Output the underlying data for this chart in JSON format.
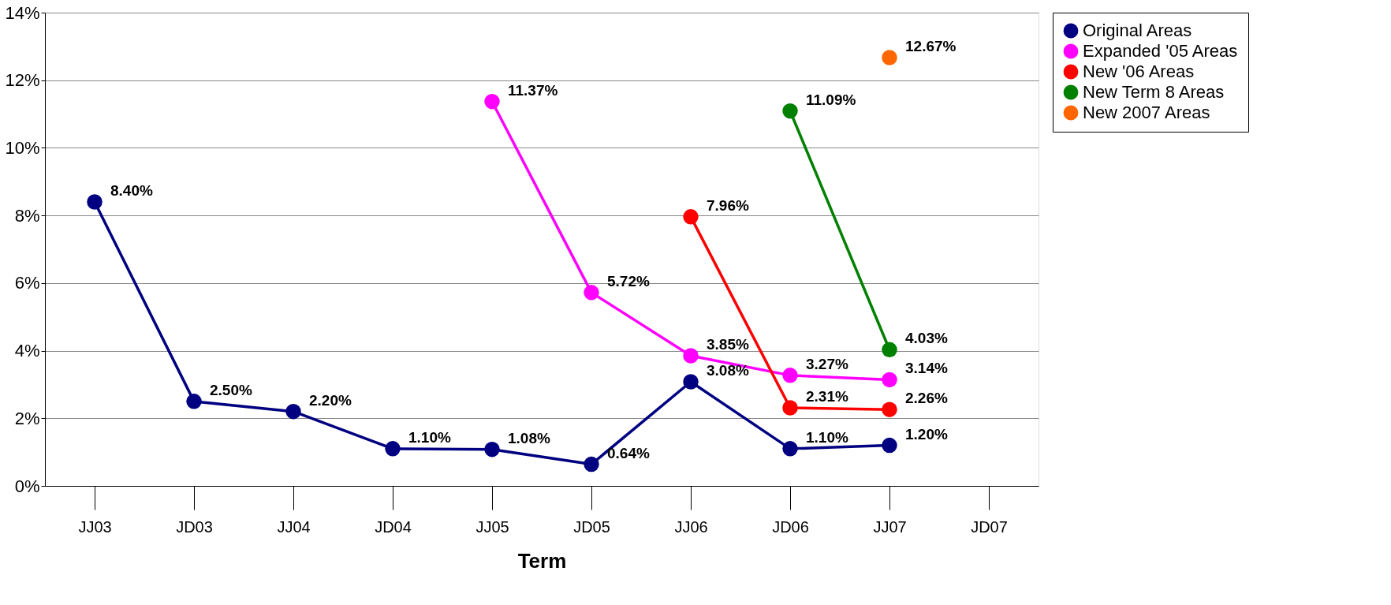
{
  "chart_data": {
    "type": "line",
    "xlabel": "Term",
    "categories": [
      "JJ03",
      "JD03",
      "JJ04",
      "JD04",
      "JJ05",
      "JD05",
      "JJ06",
      "JD06",
      "JJ07",
      "JD07"
    ],
    "ylim": [
      0,
      14
    ],
    "yticks": [
      {
        "value": 0,
        "label": "0%"
      },
      {
        "value": 2,
        "label": "2%"
      },
      {
        "value": 4,
        "label": "4%"
      },
      {
        "value": 6,
        "label": "6%"
      },
      {
        "value": 8,
        "label": "8%"
      },
      {
        "value": 10,
        "label": "10%"
      },
      {
        "value": 12,
        "label": "12%"
      },
      {
        "value": 14,
        "label": "14%"
      }
    ],
    "grid": "y",
    "legend": "right",
    "marker": "circle",
    "line_style": "solid",
    "series": [
      {
        "name": "Original Areas",
        "color": "#000080",
        "values": [
          8.4,
          2.5,
          2.2,
          1.1,
          1.08,
          0.64,
          3.08,
          1.1,
          1.2,
          null
        ],
        "value_labels": [
          "8.40%",
          "2.50%",
          "2.20%",
          "1.10%",
          "1.08%",
          "0.64%",
          "3.08%",
          "1.10%",
          "1.20%",
          null
        ]
      },
      {
        "name": "Expanded '05 Areas",
        "color": "#ff00ff",
        "values": [
          null,
          null,
          null,
          null,
          11.37,
          5.72,
          3.85,
          3.27,
          3.14,
          null
        ],
        "value_labels": [
          null,
          null,
          null,
          null,
          "11.37%",
          "5.72%",
          "3.85%",
          "3.27%",
          "3.14%",
          null
        ]
      },
      {
        "name": "New '06 Areas",
        "color": "#ff0000",
        "values": [
          null,
          null,
          null,
          null,
          null,
          null,
          7.96,
          2.31,
          2.26,
          null
        ],
        "value_labels": [
          null,
          null,
          null,
          null,
          null,
          null,
          "7.96%",
          "2.31%",
          "2.26%",
          null
        ]
      },
      {
        "name": "New Term 8 Areas",
        "color": "#008000",
        "values": [
          null,
          null,
          null,
          null,
          null,
          null,
          null,
          11.09,
          4.03,
          null
        ],
        "value_labels": [
          null,
          null,
          null,
          null,
          null,
          null,
          null,
          "11.09%",
          "4.03%",
          null
        ]
      },
      {
        "name": "New 2007 Areas",
        "color": "#ff6600",
        "values": [
          null,
          null,
          null,
          null,
          null,
          null,
          null,
          null,
          12.67,
          null
        ],
        "value_labels": [
          null,
          null,
          null,
          null,
          null,
          null,
          null,
          null,
          "12.67%",
          null
        ]
      }
    ]
  }
}
